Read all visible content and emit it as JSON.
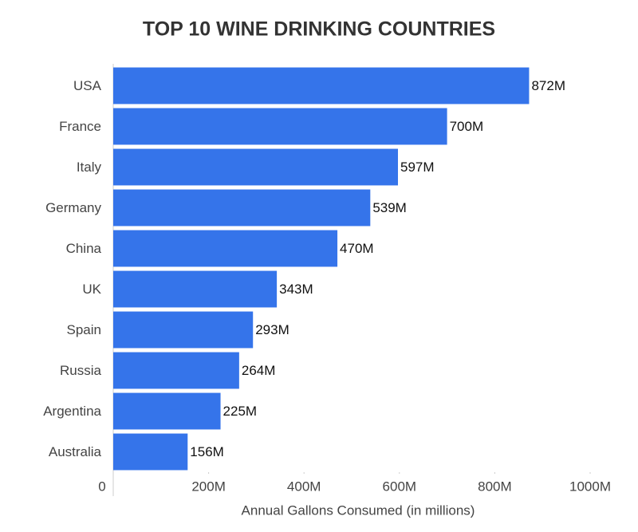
{
  "chart_data": {
    "type": "hbar",
    "title": "TOP 10 WINE DRINKING COUNTRIES",
    "x_label": "Annual Gallons Consumed (in millions)",
    "categories": [
      "USA",
      "France",
      "Italy",
      "Germany",
      "China",
      "UK",
      "Spain",
      "Russia",
      "Argentina",
      "Australia"
    ],
    "values": [
      872,
      700,
      597,
      539,
      470,
      343,
      293,
      264,
      225,
      156
    ],
    "value_labels": [
      "872M",
      "700M",
      "597M",
      "539M",
      "470M",
      "343M",
      "293M",
      "264M",
      "225M",
      "156M"
    ],
    "color": "#3574ea",
    "xlim": [
      0,
      1000
    ],
    "xticks": [
      0,
      {
        "value": 200,
        "label": "200M"
      },
      {
        "value": 400,
        "label": "400M"
      },
      {
        "value": 600,
        "label": "600M"
      },
      {
        "value": 800,
        "label": "800M"
      },
      {
        "value": 1000,
        "label": "1000M"
      }
    ],
    "grid": false
  }
}
